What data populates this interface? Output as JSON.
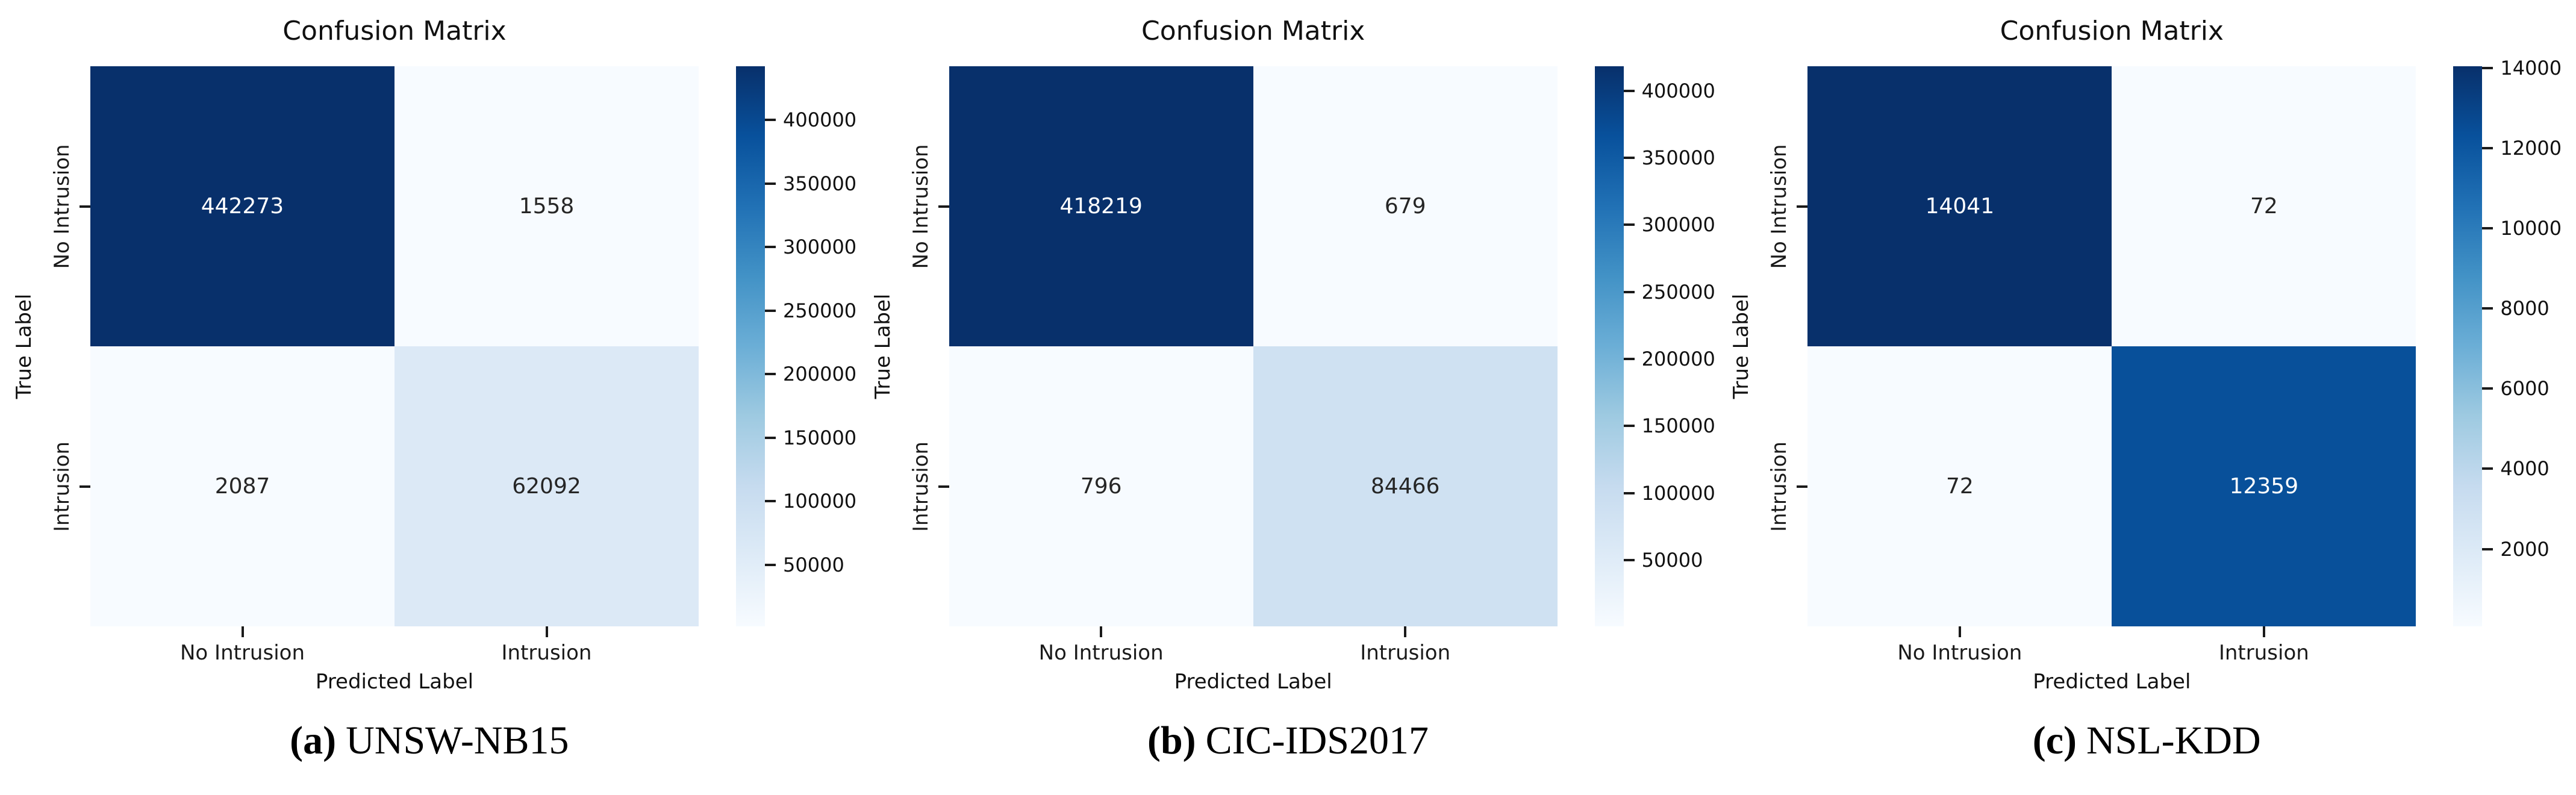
{
  "chart_data": [
    {
      "type": "heatmap",
      "title": "Confusion Matrix",
      "xlabel": "Predicted Label",
      "ylabel": "True Label",
      "x_tick_labels": [
        "No Intrusion",
        "Intrusion"
      ],
      "y_tick_labels": [
        "No Intrusion",
        "Intrusion"
      ],
      "matrix": [
        [
          442273,
          1558
        ],
        [
          2087,
          62092
        ]
      ],
      "vmin": 1558,
      "vmax": 442273,
      "colorbar_ticks": [
        400000,
        350000,
        300000,
        250000,
        200000,
        150000,
        100000,
        50000
      ],
      "colormap": "Blues",
      "legend_position": "right-colorbar",
      "grid": false,
      "caption": {
        "prefix": "(a)",
        "label": "UNSW-NB15"
      }
    },
    {
      "type": "heatmap",
      "title": "Confusion Matrix",
      "xlabel": "Predicted Label",
      "ylabel": "True Label",
      "x_tick_labels": [
        "No Intrusion",
        "Intrusion"
      ],
      "y_tick_labels": [
        "No Intrusion",
        "Intrusion"
      ],
      "matrix": [
        [
          418219,
          679
        ],
        [
          796,
          84466
        ]
      ],
      "vmin": 679,
      "vmax": 418219,
      "colorbar_ticks": [
        400000,
        350000,
        300000,
        250000,
        200000,
        150000,
        100000,
        50000
      ],
      "colormap": "Blues",
      "legend_position": "right-colorbar",
      "grid": false,
      "caption": {
        "prefix": "(b)",
        "label": "CIC-IDS2017"
      }
    },
    {
      "type": "heatmap",
      "title": "Confusion Matrix",
      "xlabel": "Predicted Label",
      "ylabel": "True Label",
      "x_tick_labels": [
        "No Intrusion",
        "Intrusion"
      ],
      "y_tick_labels": [
        "No Intrusion",
        "Intrusion"
      ],
      "matrix": [
        [
          14041,
          72
        ],
        [
          72,
          12359
        ]
      ],
      "vmin": 72,
      "vmax": 14041,
      "colorbar_ticks": [
        14000,
        12000,
        10000,
        8000,
        6000,
        4000,
        2000
      ],
      "colormap": "Blues",
      "legend_position": "right-colorbar",
      "grid": false,
      "caption": {
        "prefix": "(c)",
        "label": "NSL-KDD"
      }
    }
  ],
  "colors": {
    "colormap_stops": [
      "#f7fbff",
      "#deebf7",
      "#c6dbef",
      "#9ecae1",
      "#6baed6",
      "#4292c6",
      "#2171b5",
      "#08519c",
      "#08306b"
    ],
    "annotation_light": "#ffffff",
    "annotation_dark": "#262626",
    "axis_text": "#1a1a1a",
    "background": "#ffffff"
  }
}
